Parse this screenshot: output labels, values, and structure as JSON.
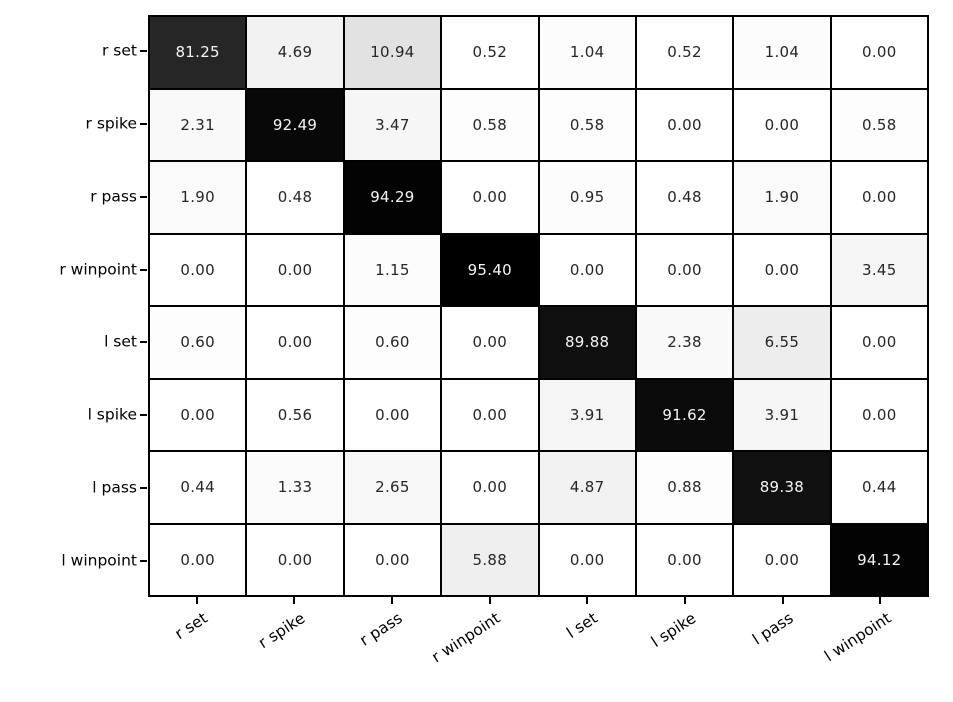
{
  "chart_data": {
    "type": "heatmap",
    "title": "",
    "xlabel": "",
    "ylabel": "",
    "categories": [
      "r set",
      "r spike",
      "r pass",
      "r winpoint",
      "l set",
      "l spike",
      "l pass",
      "l winpoint"
    ],
    "rows": [
      "r set",
      "r spike",
      "r pass",
      "r winpoint",
      "l set",
      "l spike",
      "l pass",
      "l winpoint"
    ],
    "values": [
      [
        81.25,
        4.69,
        10.94,
        0.52,
        1.04,
        0.52,
        1.04,
        0.0
      ],
      [
        2.31,
        92.49,
        3.47,
        0.58,
        0.58,
        0.0,
        0.0,
        0.58
      ],
      [
        1.9,
        0.48,
        94.29,
        0.0,
        0.95,
        0.48,
        1.9,
        0.0
      ],
      [
        0.0,
        0.0,
        1.15,
        95.4,
        0.0,
        0.0,
        0.0,
        3.45
      ],
      [
        0.6,
        0.0,
        0.6,
        0.0,
        89.88,
        2.38,
        6.55,
        0.0
      ],
      [
        0.0,
        0.56,
        0.0,
        0.0,
        3.91,
        91.62,
        3.91,
        0.0
      ],
      [
        0.44,
        1.33,
        2.65,
        0.0,
        4.87,
        0.88,
        89.38,
        0.44
      ],
      [
        0.0,
        0.0,
        0.0,
        5.88,
        0.0,
        0.0,
        0.0,
        94.12
      ]
    ],
    "value_format": "0.00",
    "vmin": 0,
    "vmax": 95.4,
    "colormap": {
      "low_color": "#ffffff",
      "high_color": "#000000"
    },
    "cell_text_dark": "#262626",
    "cell_text_light": "#f5f5f5",
    "grid_line_color": "#000000",
    "legend": "none",
    "axes": {
      "x_tick_rotation_deg": 33,
      "grid": "cell-borders-on"
    }
  }
}
